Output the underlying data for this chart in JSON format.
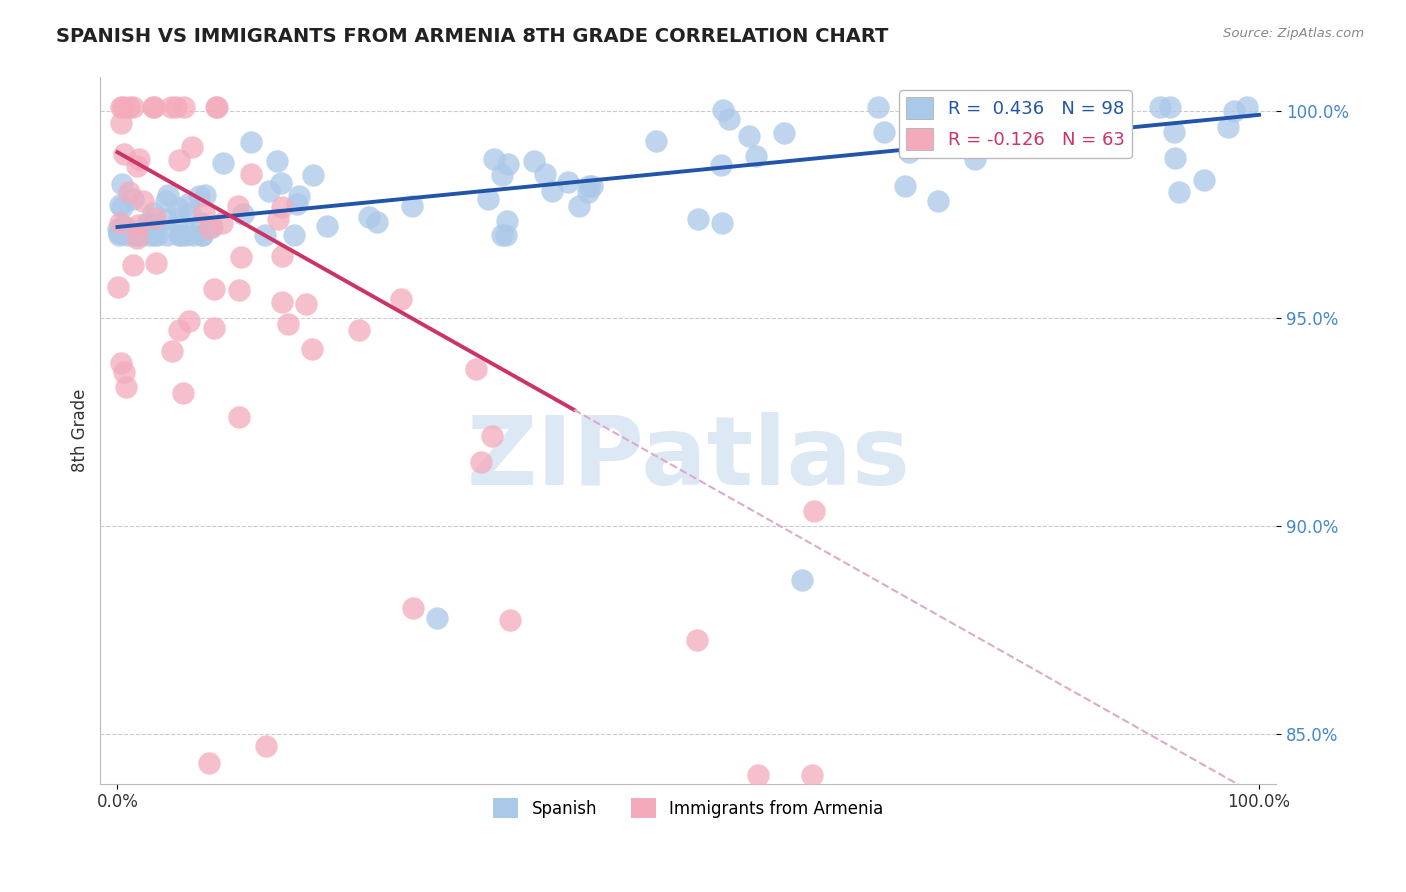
{
  "title": "SPANISH VS IMMIGRANTS FROM ARMENIA 8TH GRADE CORRELATION CHART",
  "source": "Source: ZipAtlas.com",
  "ylabel": "8th Grade",
  "xlim": [
    0.0,
    1.0
  ],
  "ylim": [
    0.838,
    1.008
  ],
  "yticks": [
    0.85,
    0.9,
    0.95,
    1.0
  ],
  "ytick_labels": [
    "85.0%",
    "90.0%",
    "95.0%",
    "100.0%"
  ],
  "xticks": [
    0.0,
    1.0
  ],
  "xtick_labels": [
    "0.0%",
    "100.0%"
  ],
  "blue_R": 0.436,
  "blue_N": 98,
  "pink_R": -0.126,
  "pink_N": 63,
  "blue_color": "#aac8e8",
  "pink_color": "#f4aabb",
  "blue_line_color": "#2255aa",
  "pink_line_color": "#cc3366",
  "pink_dash_color": "#ddaacc",
  "watermark_color": "#dde8f5",
  "grid_color": "#cccccc",
  "ytick_color": "#4488cc",
  "title_color": "#222222",
  "source_color": "#888888",
  "ylabel_color": "#333333",
  "bg_color": "#ffffff"
}
